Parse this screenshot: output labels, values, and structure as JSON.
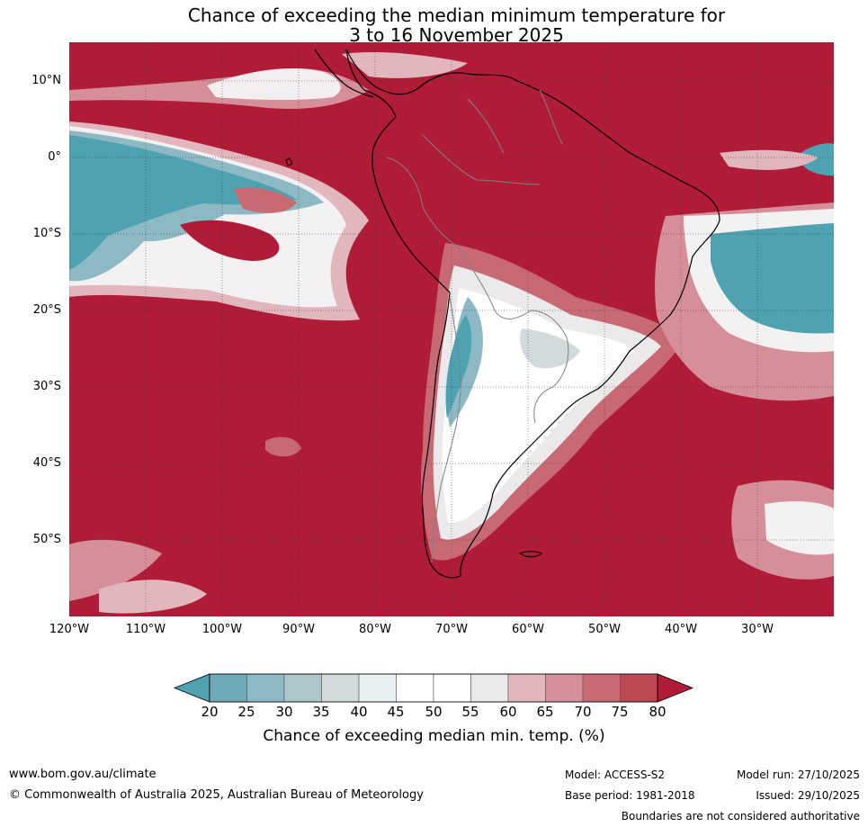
{
  "title": {
    "line1": "Chance of exceeding the median minimum temperature for",
    "line2": "3 to 16 November 2025"
  },
  "axes": {
    "lat_labels": [
      "10°N",
      "0°",
      "10°S",
      "20°S",
      "30°S",
      "40°S",
      "50°S"
    ],
    "lon_labels": [
      "120°W",
      "110°W",
      "100°W",
      "90°W",
      "80°W",
      "70°W",
      "60°W",
      "50°W",
      "40°W",
      "30°W"
    ]
  },
  "colorbar": {
    "ticks": [
      "20",
      "25",
      "30",
      "35",
      "40",
      "45",
      "50",
      "55",
      "60",
      "65",
      "70",
      "75",
      "80"
    ],
    "colors": [
      "#4ea2b2",
      "#6eaab8",
      "#8cb9c4",
      "#adc6cc",
      "#d2dadb",
      "#e9f0f2",
      "#ffffff",
      "#ffffff",
      "#ebe9ea",
      "#e1b7bd",
      "#d68f98",
      "#c86a74",
      "#bd4854",
      "#b01c37"
    ],
    "label": "Chance of exceeding median min. temp. (%)"
  },
  "colors": {
    "high": "#b01c37",
    "low": "#4ea2b2",
    "coast": "#000000",
    "border": "#808080"
  },
  "footer": {
    "url": "www.bom.gov.au/climate",
    "copyright": "© Commonwealth of Australia 2025, Australian Bureau of Meteorology",
    "model": "Model: ACCESS-S2",
    "base_period": "Base period: 1981-2018",
    "model_run": "Model run: 27/10/2025",
    "issued": "Issued: 29/10/2025",
    "disclaimer": "Boundaries are not considered authoritative"
  }
}
